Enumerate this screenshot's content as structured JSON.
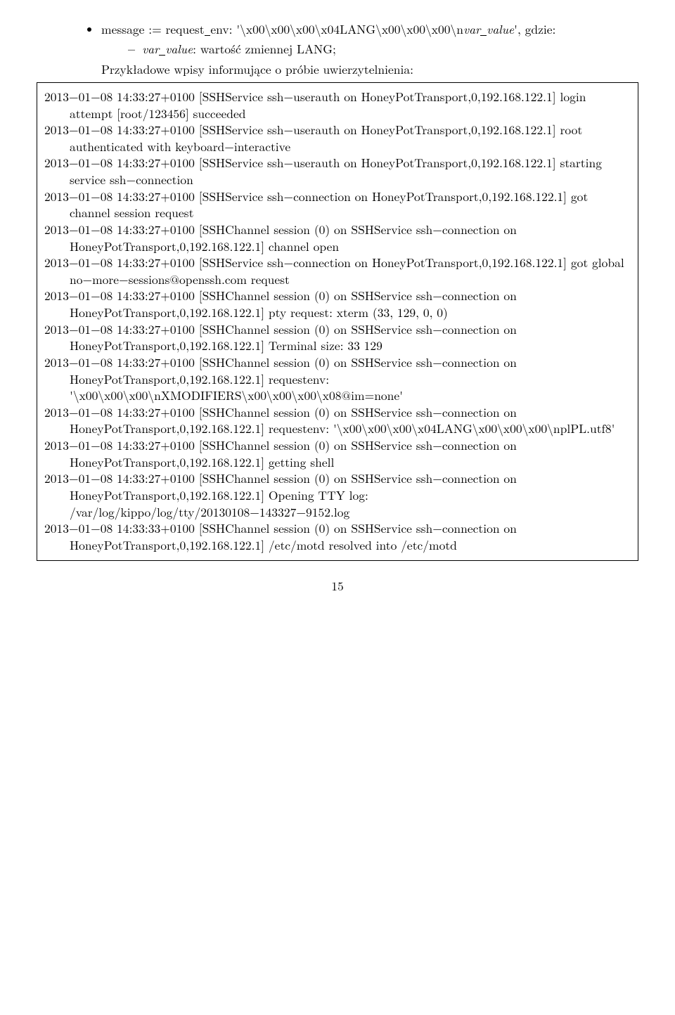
{
  "bullet": {
    "prefix": "message := request",
    "mid": "env: '\\x00\\x00\\x00\\x04LANG\\x00\\x00\\x00\\n",
    "var": "var",
    "u": "_",
    "value": "value",
    "suffix": "', gdzie:"
  },
  "dash": {
    "var": "var",
    "u": "_",
    "value": "value",
    "rest": ": wartość zmiennej LANG;"
  },
  "intro": "Przykładowe wpisy informujące o próbie uwierzytelnienia:",
  "log": [
    "2013−01−08 14:33:27+0100 [SSHService ssh−userauth on HoneyPotTransport,0,192.168.122.1] login attempt [root/123456] succeeded",
    "2013−01−08 14:33:27+0100 [SSHService ssh−userauth on HoneyPotTransport,0,192.168.122.1] root authenticated with keyboard−interactive",
    "2013−01−08 14:33:27+0100 [SSHService ssh−userauth on HoneyPotTransport,0,192.168.122.1] starting service ssh−connection",
    "2013−01−08 14:33:27+0100 [SSHService ssh−connection on HoneyPotTransport,0,192.168.122.1] got channel session request",
    "2013−01−08 14:33:27+0100 [SSHChannel session (0) on SSHService ssh−connection on HoneyPotTransport,0,192.168.122.1] channel open",
    "2013−01−08 14:33:27+0100 [SSHService ssh−connection on HoneyPotTransport,0,192.168.122.1] got global no−more−sessions@openssh.com request",
    "2013−01−08 14:33:27+0100 [SSHChannel session (0) on SSHService ssh−connection on HoneyPotTransport,0,192.168.122.1] pty request: xterm (33, 129, 0, 0)",
    "2013−01−08 14:33:27+0100 [SSHChannel session (0) on SSHService ssh−connection on HoneyPotTransport,0,192.168.122.1] Terminal size: 33 129",
    "2013−01−08 14:33:27+0100 [SSHChannel session (0) on SSHService ssh−connection on HoneyPotTransport,0,192.168.122.1] request_env: '\\x00\\x00\\x00\\nXMODIFIERS\\x00\\x00\\x00\\x08@im=none'",
    "2013−01−08 14:33:27+0100 [SSHChannel session (0) on SSHService ssh−connection on HoneyPotTransport,0,192.168.122.1] request_env: '\\x00\\x00\\x00\\x04LANG\\x00\\x00\\x00\\npl_PL.utf8'",
    "2013−01−08 14:33:27+0100 [SSHChannel session (0) on SSHService ssh−connection on HoneyPotTransport,0,192.168.122.1] getting shell",
    "2013−01−08 14:33:27+0100 [SSHChannel session (0) on SSHService ssh−connection on HoneyPotTransport,0,192.168.122.1] Opening TTY log: /var/log/kippo/log/tty/20130108−143327−9152.log",
    "2013−01−08 14:33:33+0100 [SSHChannel session (0) on SSHService ssh−connection on HoneyPotTransport,0,192.168.122.1] /etc/motd resolved into /etc/motd"
  ],
  "page": "15"
}
